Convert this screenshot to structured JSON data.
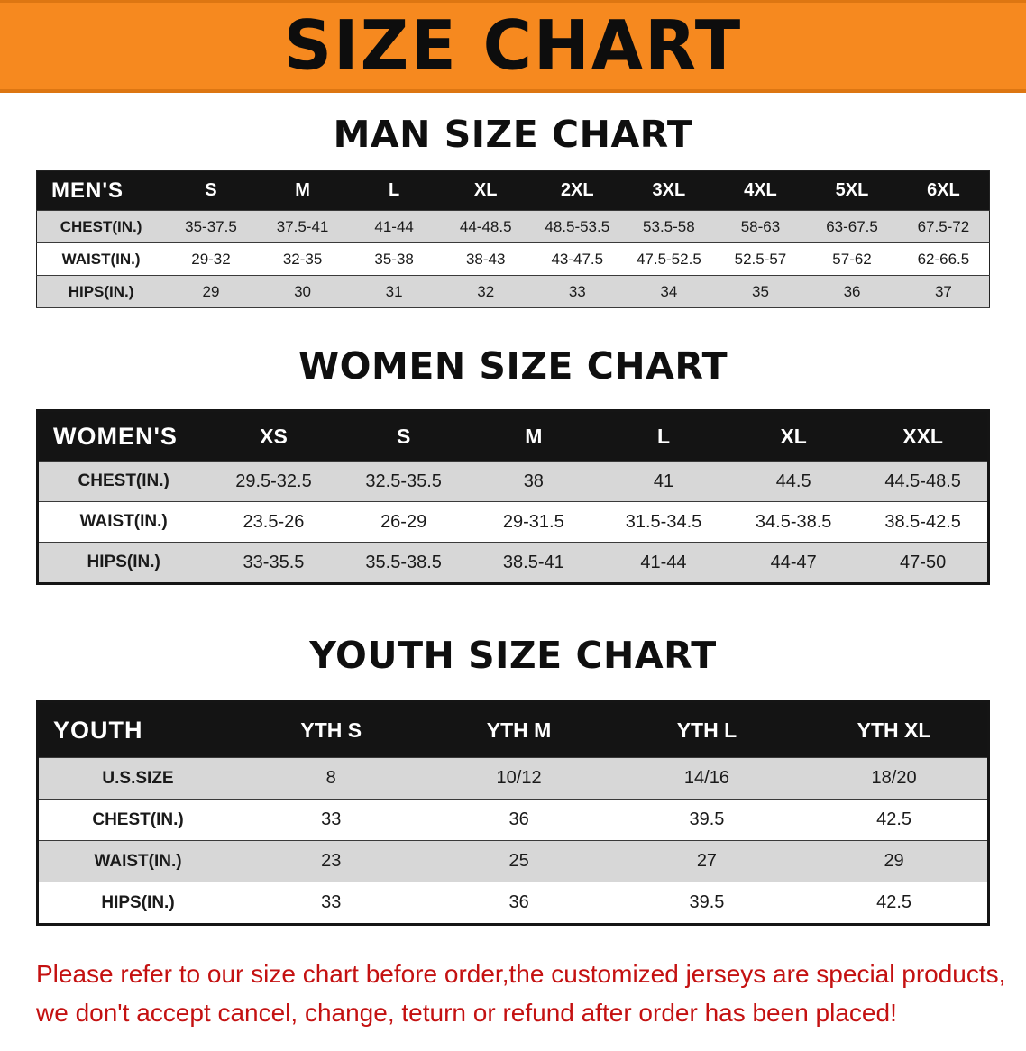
{
  "colors": {
    "banner_orange": "#F6891F",
    "table_header_black": "#141414",
    "stripe_gray": "#D7D7D7",
    "disclaimer_red": "#C41111"
  },
  "banner": {
    "title": "SIZE CHART"
  },
  "sections": {
    "men": {
      "heading": "MAN SIZE CHART",
      "table": {
        "header_label": "MEN'S",
        "columns": [
          "S",
          "M",
          "L",
          "XL",
          "2XL",
          "3XL",
          "4XL",
          "5XL",
          "6XL"
        ],
        "rows": [
          {
            "label": "CHEST(IN.)",
            "values": [
              "35-37.5",
              "37.5-41",
              "41-44",
              "44-48.5",
              "48.5-53.5",
              "53.5-58",
              "58-63",
              "63-67.5",
              "67.5-72"
            ]
          },
          {
            "label": "WAIST(IN.)",
            "values": [
              "29-32",
              "32-35",
              "35-38",
              "38-43",
              "43-47.5",
              "47.5-52.5",
              "52.5-57",
              "57-62",
              "62-66.5"
            ]
          },
          {
            "label": "HIPS(IN.)",
            "values": [
              "29",
              "30",
              "31",
              "32",
              "33",
              "34",
              "35",
              "36",
              "37"
            ]
          }
        ]
      }
    },
    "women": {
      "heading": "WOMEN SIZE CHART",
      "table": {
        "header_label": "WOMEN'S",
        "columns": [
          "XS",
          "S",
          "M",
          "L",
          "XL",
          "XXL"
        ],
        "rows": [
          {
            "label": "CHEST(IN.)",
            "values": [
              "29.5-32.5",
              "32.5-35.5",
              "38",
              "41",
              "44.5",
              "44.5-48.5"
            ]
          },
          {
            "label": "WAIST(IN.)",
            "values": [
              "23.5-26",
              "26-29",
              "29-31.5",
              "31.5-34.5",
              "34.5-38.5",
              "38.5-42.5"
            ]
          },
          {
            "label": "HIPS(IN.)",
            "values": [
              "33-35.5",
              "35.5-38.5",
              "38.5-41",
              "41-44",
              "44-47",
              "47-50"
            ]
          }
        ]
      }
    },
    "youth": {
      "heading": "YOUTH SIZE CHART",
      "table": {
        "header_label": "YOUTH",
        "columns": [
          "YTH S",
          "YTH M",
          "YTH L",
          "YTH XL"
        ],
        "rows": [
          {
            "label": "U.S.SIZE",
            "values": [
              "8",
              "10/12",
              "14/16",
              "18/20"
            ]
          },
          {
            "label": "CHEST(IN.)",
            "values": [
              "33",
              "36",
              "39.5",
              "42.5"
            ]
          },
          {
            "label": "WAIST(IN.)",
            "values": [
              "23",
              "25",
              "27",
              "29"
            ]
          },
          {
            "label": "HIPS(IN.)",
            "values": [
              "33",
              "36",
              "39.5",
              "42.5"
            ]
          }
        ]
      }
    }
  },
  "disclaimer": {
    "lines": [
      "Please refer to our size chart before order,the customized jerseys are special products,",
      "we don't accept cancel, change, teturn or refund after order has been placed!"
    ]
  }
}
